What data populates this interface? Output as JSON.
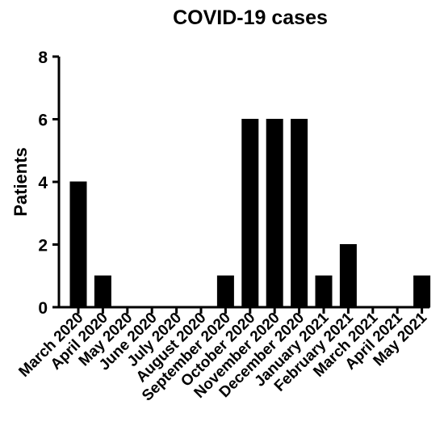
{
  "chart_data": {
    "type": "bar",
    "title": "COVID-19 cases",
    "xlabel": "",
    "ylabel": "Patients",
    "categories": [
      "March 2020",
      "April 2020",
      "May 2020",
      "June 2020",
      "July 2020",
      "August 2020",
      "September 2020",
      "October 2020",
      "November 2020",
      "December 2020",
      "January 2021",
      "February 2021",
      "March 2021",
      "April 2021",
      "May 2021"
    ],
    "values": [
      4,
      1,
      0,
      0,
      0,
      0,
      1,
      6,
      6,
      6,
      1,
      2,
      0,
      0,
      1
    ],
    "ylim": [
      0,
      8
    ],
    "yticks": [
      0,
      2,
      4,
      6,
      8
    ],
    "grid": false,
    "bar_color": "#000000"
  }
}
